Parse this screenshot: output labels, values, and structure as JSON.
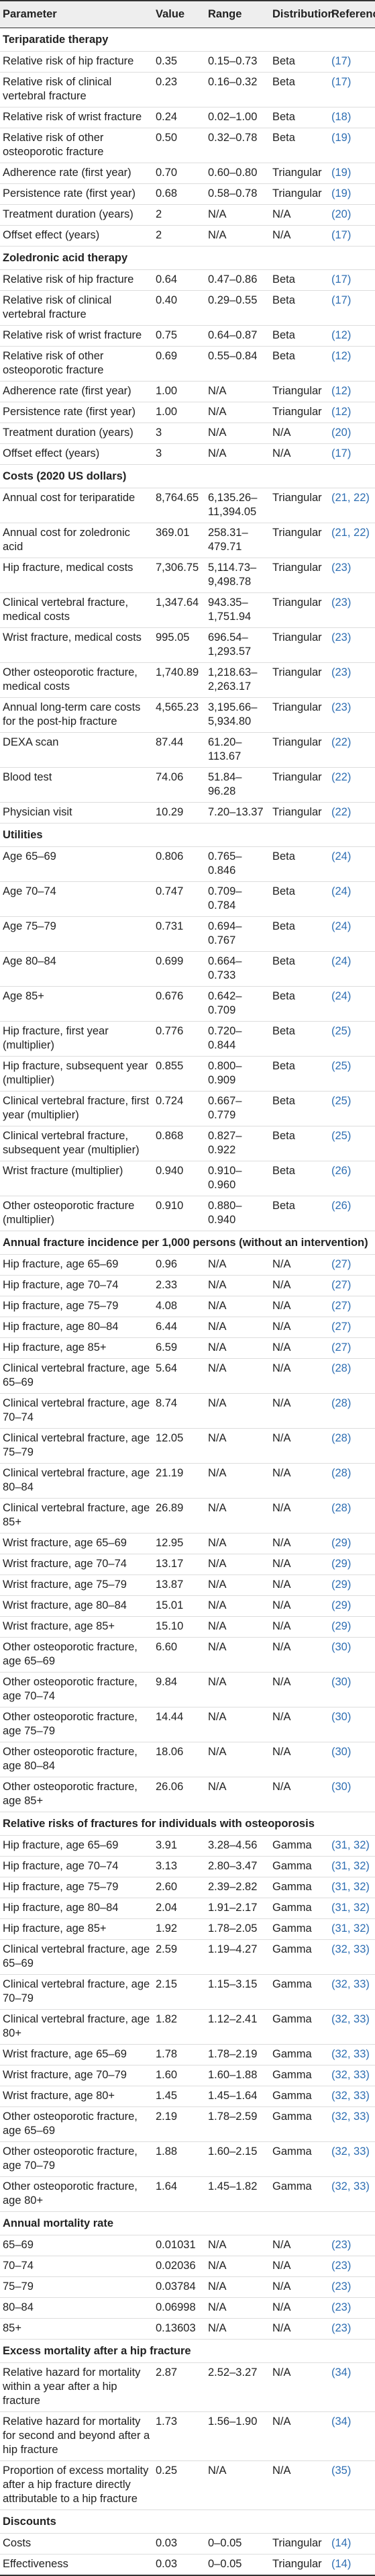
{
  "table": {
    "header": [
      "Parameter",
      "Value",
      "Range",
      "Distribution",
      "References"
    ],
    "sections": [
      {
        "title": "Teriparatide therapy",
        "rows": [
          [
            "Relative risk of hip fracture",
            "0.35",
            "0.15–0.73",
            "Beta",
            "(17)"
          ],
          [
            "Relative risk of clinical vertebral fracture",
            "0.23",
            "0.16–0.32",
            "Beta",
            "(17)"
          ],
          [
            "Relative risk of wrist fracture",
            "0.24",
            "0.02–1.00",
            "Beta",
            "(18)"
          ],
          [
            "Relative risk of other osteoporotic fracture",
            "0.50",
            "0.32–0.78",
            "Beta",
            "(19)"
          ],
          [
            "Adherence rate (first year)",
            "0.70",
            "0.60–0.80",
            "Triangular",
            "(19)"
          ],
          [
            "Persistence rate (first year)",
            "0.68",
            "0.58–0.78",
            "Triangular",
            "(19)"
          ],
          [
            "Treatment duration (years)",
            "2",
            "N/A",
            "N/A",
            "(20)"
          ],
          [
            "Offset effect (years)",
            "2",
            "N/A",
            "N/A",
            "(17)"
          ]
        ]
      },
      {
        "title": "Zoledronic acid therapy",
        "rows": [
          [
            "Relative risk of hip fracture",
            "0.64",
            "0.47–0.86",
            "Beta",
            "(17)"
          ],
          [
            "Relative risk of clinical vertebral fracture",
            "0.40",
            "0.29–0.55",
            "Beta",
            "(17)"
          ],
          [
            "Relative risk of wrist fracture",
            "0.75",
            "0.64–0.87",
            "Beta",
            "(12)"
          ],
          [
            "Relative risk of other osteoporotic fracture",
            "0.69",
            "0.55–0.84",
            "Beta",
            "(12)"
          ],
          [
            "Adherence rate (first year)",
            "1.00",
            "N/A",
            "Triangular",
            "(12)"
          ],
          [
            "Persistence rate (first year)",
            "1.00",
            "N/A",
            "Triangular",
            "(12)"
          ],
          [
            "Treatment duration (years)",
            "3",
            "N/A",
            "N/A",
            "(20)"
          ],
          [
            "Offset effect (years)",
            "3",
            "N/A",
            "N/A",
            "(17)"
          ]
        ]
      },
      {
        "title": "Costs (2020 US dollars)",
        "rows": [
          [
            "Annual cost for teriparatide",
            "8,764.65",
            "6,135.26–11,394.05",
            "Triangular",
            "(21, 22)"
          ],
          [
            "Annual cost for zoledronic acid",
            "369.01",
            "258.31–479.71",
            "Triangular",
            "(21, 22)"
          ],
          [
            "Hip fracture, medical costs",
            "7,306.75",
            "5,114.73–9,498.78",
            "Triangular",
            "(23)"
          ],
          [
            "Clinical vertebral fracture, medical costs",
            "1,347.64",
            "943.35–1,751.94",
            "Triangular",
            "(23)"
          ],
          [
            "Wrist fracture, medical costs",
            "995.05",
            "696.54–1,293.57",
            "Triangular",
            "(23)"
          ],
          [
            "Other osteoporotic fracture, medical costs",
            "1,740.89",
            "1,218.63–2,263.17",
            "Triangular",
            "(23)"
          ],
          [
            "Annual long-term care costs for the post-hip fracture",
            "4,565.23",
            "3,195.66–5,934.80",
            "Triangular",
            "(23)"
          ],
          [
            "DEXA scan",
            "87.44",
            "61.20–113.67",
            "Triangular",
            "(22)"
          ],
          [
            "Blood test",
            "74.06",
            "51.84–96.28",
            "Triangular",
            "(22)"
          ],
          [
            "Physician visit",
            "10.29",
            "7.20–13.37",
            "Triangular",
            "(22)"
          ]
        ]
      },
      {
        "title": "Utilities",
        "rows": [
          [
            "Age 65–69",
            "0.806",
            "0.765–0.846",
            "Beta",
            "(24)"
          ],
          [
            "Age 70–74",
            "0.747",
            "0.709–0.784",
            "Beta",
            "(24)"
          ],
          [
            "Age 75–79",
            "0.731",
            "0.694–0.767",
            "Beta",
            "(24)"
          ],
          [
            "Age 80–84",
            "0.699",
            "0.664–0.733",
            "Beta",
            "(24)"
          ],
          [
            "Age 85+",
            "0.676",
            "0.642–0.709",
            "Beta",
            "(24)"
          ],
          [
            "Hip fracture, first year (multiplier)",
            "0.776",
            "0.720–0.844",
            "Beta",
            "(25)"
          ],
          [
            "Hip fracture, subsequent year (multiplier)",
            "0.855",
            "0.800–0.909",
            "Beta",
            "(25)"
          ],
          [
            "Clinical vertebral fracture, first year (multiplier)",
            "0.724",
            "0.667–0.779",
            "Beta",
            "(25)"
          ],
          [
            "Clinical vertebral fracture, subsequent year (multiplier)",
            "0.868",
            "0.827–0.922",
            "Beta",
            "(25)"
          ],
          [
            "Wrist fracture (multiplier)",
            "0.940",
            "0.910–0.960",
            "Beta",
            "(26)"
          ],
          [
            "Other osteoporotic fracture (multiplier)",
            "0.910",
            "0.880–0.940",
            "Beta",
            "(26)"
          ]
        ]
      },
      {
        "title": "Annual fracture incidence per 1,000 persons (without an intervention)",
        "rows": [
          [
            "Hip fracture, age 65–69",
            "0.96",
            "N/A",
            "N/A",
            "(27)"
          ],
          [
            "Hip fracture, age 70–74",
            "2.33",
            "N/A",
            "N/A",
            "(27)"
          ],
          [
            "Hip fracture, age 75–79",
            "4.08",
            "N/A",
            "N/A",
            "(27)"
          ],
          [
            "Hip fracture, age 80–84",
            "6.44",
            "N/A",
            "N/A",
            "(27)"
          ],
          [
            "Hip fracture, age 85+",
            "6.59",
            "N/A",
            "N/A",
            "(27)"
          ],
          [
            "Clinical vertebral fracture, age 65–69",
            "5.64",
            "N/A",
            "N/A",
            "(28)"
          ],
          [
            "Clinical vertebral fracture, age 70–74",
            "8.74",
            "N/A",
            "N/A",
            "(28)"
          ],
          [
            "Clinical vertebral fracture, age 75–79",
            "12.05",
            "N/A",
            "N/A",
            "(28)"
          ],
          [
            "Clinical vertebral fracture, age 80–84",
            "21.19",
            "N/A",
            "N/A",
            "(28)"
          ],
          [
            "Clinical vertebral fracture, age 85+",
            "26.89",
            "N/A",
            "N/A",
            "(28)"
          ],
          [
            "Wrist fracture, age 65–69",
            "12.95",
            "N/A",
            "N/A",
            "(29)"
          ],
          [
            "Wrist fracture, age 70–74",
            "13.17",
            "N/A",
            "N/A",
            "(29)"
          ],
          [
            "Wrist fracture, age 75–79",
            "13.87",
            "N/A",
            "N/A",
            "(29)"
          ],
          [
            "Wrist fracture, age 80–84",
            "15.01",
            "N/A",
            "N/A",
            "(29)"
          ],
          [
            "Wrist fracture, age 85+",
            "15.10",
            "N/A",
            "N/A",
            "(29)"
          ],
          [
            "Other osteoporotic fracture, age 65–69",
            "6.60",
            "N/A",
            "N/A",
            "(30)"
          ],
          [
            "Other osteoporotic fracture, age 70–74",
            "9.84",
            "N/A",
            "N/A",
            "(30)"
          ],
          [
            "Other osteoporotic fracture, age 75–79",
            "14.44",
            "N/A",
            "N/A",
            "(30)"
          ],
          [
            "Other osteoporotic fracture, age 80–84",
            "18.06",
            "N/A",
            "N/A",
            "(30)"
          ],
          [
            "Other osteoporotic fracture, age 85+",
            "26.06",
            "N/A",
            "N/A",
            "(30)"
          ]
        ]
      },
      {
        "title": "Relative risks of fractures for individuals with osteoporosis",
        "rows": [
          [
            "Hip fracture, age 65–69",
            "3.91",
            "3.28–4.56",
            "Gamma",
            "(31, 32)"
          ],
          [
            "Hip fracture, age 70–74",
            "3.13",
            "2.80–3.47",
            "Gamma",
            "(31, 32)"
          ],
          [
            "Hip fracture, age 75–79",
            "2.60",
            "2.39–2.82",
            "Gamma",
            "(31, 32)"
          ],
          [
            "Hip fracture, age 80–84",
            "2.04",
            "1.91–2.17",
            "Gamma",
            "(31, 32)"
          ],
          [
            "Hip fracture, age 85+",
            "1.92",
            "1.78–2.05",
            "Gamma",
            "(31, 32)"
          ],
          [
            "Clinical vertebral fracture, age 65–69",
            "2.59",
            "1.19–4.27",
            "Gamma",
            "(32, 33)"
          ],
          [
            "Clinical vertebral fracture, age 70–79",
            "2.15",
            "1.15–3.15",
            "Gamma",
            "(32, 33)"
          ],
          [
            "Clinical vertebral fracture, age 80+",
            "1.82",
            "1.12–2.41",
            "Gamma",
            "(32, 33)"
          ],
          [
            "Wrist fracture, age 65–69",
            "1.78",
            "1.78–2.19",
            "Gamma",
            "(32, 33)"
          ],
          [
            "Wrist fracture, age 70–79",
            "1.60",
            "1.60–1.88",
            "Gamma",
            "(32, 33)"
          ],
          [
            "Wrist fracture, age 80+",
            "1.45",
            "1.45–1.64",
            "Gamma",
            "(32, 33)"
          ],
          [
            "Other osteoporotic fracture, age 65–69",
            "2.19",
            "1.78–2.59",
            "Gamma",
            "(32, 33)"
          ],
          [
            "Other osteoporotic fracture, age 70–79",
            "1.88",
            "1.60–2.15",
            "Gamma",
            "(32, 33)"
          ],
          [
            "Other osteoporotic fracture, age 80+",
            "1.64",
            "1.45–1.82",
            "Gamma",
            "(32, 33)"
          ]
        ]
      },
      {
        "title": "Annual mortality rate",
        "rows": [
          [
            "65–69",
            "0.01031",
            "N/A",
            "N/A",
            "(23)"
          ],
          [
            "70–74",
            "0.02036",
            "N/A",
            "N/A",
            "(23)"
          ],
          [
            "75–79",
            "0.03784",
            "N/A",
            "N/A",
            "(23)"
          ],
          [
            "80–84",
            "0.06998",
            "N/A",
            "N/A",
            "(23)"
          ],
          [
            "85+",
            "0.13603",
            "N/A",
            "N/A",
            "(23)"
          ]
        ]
      },
      {
        "title": "Excess mortality after a hip fracture",
        "rows": [
          [
            "Relative hazard for mortality within a year after a hip fracture",
            "2.87",
            "2.52–3.27",
            "N/A",
            "(34)"
          ],
          [
            "Relative hazard for mortality for second and beyond after a hip fracture",
            "1.73",
            "1.56–1.90",
            "N/A",
            "(34)"
          ],
          [
            "Proportion of excess mortality after a hip fracture directly attributable to a hip fracture",
            "0.25",
            "N/A",
            "N/A",
            "(35)"
          ]
        ]
      },
      {
        "title": "Discounts",
        "rows": [
          [
            "Costs",
            "0.03",
            "0–0.05",
            "Triangular",
            "(14)"
          ],
          [
            "Effectiveness",
            "0.03",
            "0–0.05",
            "Triangular",
            "(14)"
          ]
        ]
      }
    ]
  }
}
